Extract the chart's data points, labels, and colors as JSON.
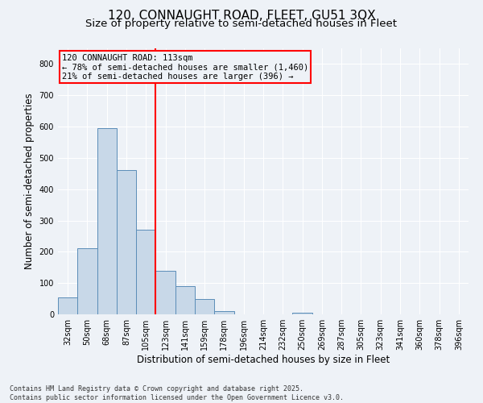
{
  "title_line1": "120, CONNAUGHT ROAD, FLEET, GU51 3QX",
  "title_line2": "Size of property relative to semi-detached houses in Fleet",
  "xlabel": "Distribution of semi-detached houses by size in Fleet",
  "ylabel": "Number of semi-detached properties",
  "categories": [
    "32sqm",
    "50sqm",
    "68sqm",
    "87sqm",
    "105sqm",
    "123sqm",
    "141sqm",
    "159sqm",
    "178sqm",
    "196sqm",
    "214sqm",
    "232sqm",
    "250sqm",
    "269sqm",
    "287sqm",
    "305sqm",
    "323sqm",
    "341sqm",
    "360sqm",
    "378sqm",
    "396sqm"
  ],
  "values": [
    55,
    210,
    595,
    460,
    270,
    140,
    90,
    50,
    10,
    0,
    0,
    0,
    5,
    0,
    0,
    0,
    0,
    0,
    0,
    0,
    0
  ],
  "bar_color": "#c8d8e8",
  "bar_edge_color": "#5b8db8",
  "vline_pos": 4.5,
  "vline_color": "red",
  "annotation_title": "120 CONNAUGHT ROAD: 113sqm",
  "annotation_line1": "← 78% of semi-detached houses are smaller (1,460)",
  "annotation_line2": "21% of semi-detached houses are larger (396) →",
  "annotation_box_color": "red",
  "ylim": [
    0,
    850
  ],
  "yticks": [
    0,
    100,
    200,
    300,
    400,
    500,
    600,
    700,
    800
  ],
  "footer": "Contains HM Land Registry data © Crown copyright and database right 2025.\nContains public sector information licensed under the Open Government Licence v3.0.",
  "bg_color": "#eef2f7",
  "grid_color": "#ffffff",
  "title_fontsize": 11,
  "subtitle_fontsize": 9.5,
  "axis_label_fontsize": 8.5,
  "tick_fontsize": 7,
  "footer_fontsize": 6,
  "annotation_fontsize": 7.5
}
